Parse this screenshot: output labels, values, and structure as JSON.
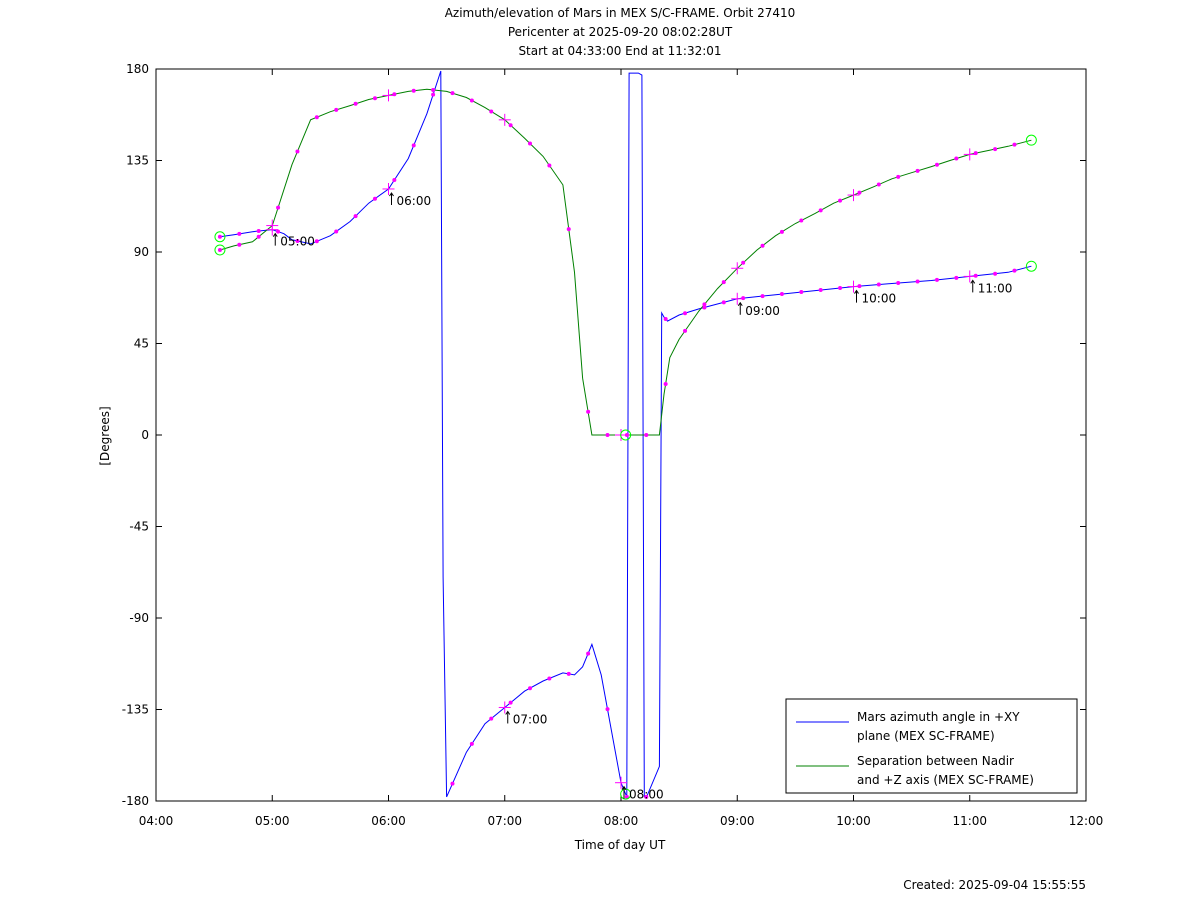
{
  "chart_data": {
    "type": "line",
    "title_lines": [
      "Azimuth/elevation of Mars in MEX S/C-FRAME.  Orbit 27410",
      "Pericenter at 2025-09-20 08:02:28UT",
      "Start at 04:33:00 End at 11:32:01"
    ],
    "xlabel": "Time of day UT",
    "ylabel": "[Degrees]",
    "footer": "Created: 2025-09-04 15:55:55",
    "x_unit": "hours of day",
    "xlim": [
      4,
      12
    ],
    "ylim": [
      -180,
      180
    ],
    "x_ticks": [
      4,
      5,
      6,
      7,
      8,
      9,
      10,
      11,
      12
    ],
    "x_tick_labels": [
      "04:00",
      "05:00",
      "06:00",
      "07:00",
      "08:00",
      "09:00",
      "10:00",
      "11:00",
      "12:00"
    ],
    "y_ticks": [
      180,
      135,
      90,
      45,
      0,
      -45,
      -90,
      -135,
      -180
    ],
    "y_tick_labels": [
      "180",
      "135",
      "90",
      "45",
      "0",
      "-45",
      "-90",
      "-135",
      "-180"
    ],
    "legend_position": "bottom-right",
    "series": [
      {
        "name": "Mars azimuth angle in +XY plane (MEX SC-FRAME)",
        "legend_lines": [
          "Mars azimuth angle in +XY",
          "plane (MEX SC-FRAME)"
        ],
        "color": "#0000ff",
        "x": [
          4.55,
          4.67,
          4.83,
          5.0,
          5.1,
          5.17,
          5.33,
          5.5,
          5.67,
          5.83,
          6.0,
          6.17,
          6.33,
          6.45,
          6.47,
          6.5,
          6.67,
          6.83,
          7.0,
          7.17,
          7.33,
          7.5,
          7.6,
          7.67,
          7.75,
          7.83,
          8.0,
          8.05,
          8.07,
          8.1,
          8.15,
          8.18,
          8.2,
          8.22,
          8.33,
          8.35,
          8.37,
          8.4,
          8.5,
          8.67,
          9.0,
          9.33,
          9.67,
          10.0,
          10.33,
          10.67,
          11.0,
          11.33,
          11.53
        ],
        "y": [
          97.5,
          98.5,
          100,
          101,
          99,
          96,
          94,
          98,
          105,
          114,
          121,
          136,
          158,
          179,
          -70,
          -178,
          -156,
          -142,
          -134,
          -126,
          -121,
          -117,
          -118,
          -114,
          -103,
          -118,
          -171,
          -178,
          178,
          178,
          178,
          177,
          -178,
          -178,
          -163,
          60,
          58,
          56,
          59,
          62,
          67,
          69,
          71,
          73,
          74.5,
          76,
          78,
          80,
          83
        ]
      },
      {
        "name": "Separation between Nadir and +Z axis (MEX SC-FRAME)",
        "legend_lines": [
          "Separation between Nadir",
          "and +Z axis (MEX SC-FRAME)"
        ],
        "color": "#008000",
        "x": [
          4.55,
          4.67,
          4.83,
          5.0,
          5.17,
          5.33,
          5.5,
          5.67,
          5.83,
          6.0,
          6.17,
          6.33,
          6.5,
          6.67,
          6.83,
          7.0,
          7.17,
          7.33,
          7.5,
          7.6,
          7.67,
          7.75,
          7.83,
          8.0,
          8.17,
          8.33,
          8.37,
          8.42,
          8.5,
          8.67,
          8.83,
          9.0,
          9.17,
          9.33,
          9.5,
          9.67,
          9.83,
          10.0,
          10.17,
          10.33,
          10.5,
          10.67,
          10.83,
          11.0,
          11.17,
          11.33,
          11.53
        ],
        "y": [
          91,
          93,
          95,
          103,
          133,
          155,
          159,
          162,
          165,
          167,
          169,
          170,
          169,
          166,
          161,
          155,
          146,
          137,
          123,
          80,
          28,
          0,
          0,
          0,
          0,
          0,
          20,
          38,
          47,
          61,
          72,
          82,
          91,
          98,
          104,
          109,
          114,
          118,
          122,
          126,
          129,
          132,
          135,
          138,
          140,
          142,
          145
        ]
      }
    ],
    "markers": {
      "marker_color": "#ff00ff",
      "circle_color": "#00ff00",
      "dot_spacing_hours": 0.1667,
      "dot_range": [
        4.55,
        11.53
      ],
      "plus_hours": [
        5,
        6,
        7,
        8,
        9,
        10,
        11
      ],
      "circle_hours": [
        4.55,
        8.04,
        11.53
      ]
    },
    "annotations": [
      {
        "text": "05:00",
        "x": 5.0,
        "y": 101
      },
      {
        "text": "06:00",
        "x": 6.0,
        "y": 121
      },
      {
        "text": "07:00",
        "x": 7.0,
        "y": -134
      },
      {
        "text": "08:00",
        "x": 8.0,
        "y": -171
      },
      {
        "text": "09:00",
        "x": 9.0,
        "y": 67
      },
      {
        "text": "10:00",
        "x": 10.0,
        "y": 73
      },
      {
        "text": "11:00",
        "x": 11.0,
        "y": 78
      }
    ]
  }
}
